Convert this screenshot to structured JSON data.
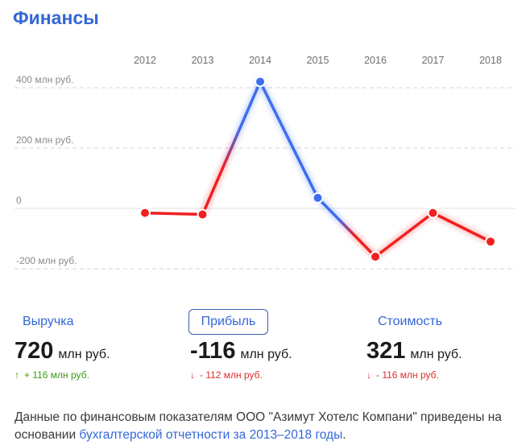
{
  "title": "Финансы",
  "chart_data": {
    "type": "line",
    "x": [
      "2012",
      "2013",
      "2014",
      "2015",
      "2016",
      "2017",
      "2018"
    ],
    "values": [
      -15,
      -20,
      420,
      35,
      -160,
      -15,
      -110
    ],
    "yticks": [
      {
        "value": 400,
        "label": "400 млн руб."
      },
      {
        "value": 200,
        "label": "200 млн руб."
      },
      {
        "value": 0,
        "label": "0"
      },
      {
        "value": -200,
        "label": "-200 млн руб."
      }
    ],
    "ylim": [
      -200,
      400
    ],
    "positive_color": "#3d6ef0",
    "negative_color": "#f02020",
    "grid": true
  },
  "tabs": {
    "revenue": "Выручка",
    "profit": "Прибыль",
    "value": "Стоимость"
  },
  "metrics": {
    "revenue": {
      "value": "720",
      "unit": "млн руб.",
      "arrow": "↑",
      "delta": "+ 116 млн руб."
    },
    "profit": {
      "value": "-116",
      "unit": "млн руб.",
      "arrow": "↓",
      "delta": "- 112 млн руб."
    },
    "value": {
      "value": "321",
      "unit": "млн руб.",
      "arrow": "↓",
      "delta": "- 116 млн руб."
    }
  },
  "note": {
    "text": "Данные по финансовым показателям ООО \"Азимут Хотелс Компани\" приведены на основании ",
    "link": "бухгалтерской отчетности за 2013–2018 годы",
    "end": "."
  },
  "colors": {
    "accent": "#3367d6",
    "up": "#3e9a15",
    "down": "#e02d2d"
  }
}
